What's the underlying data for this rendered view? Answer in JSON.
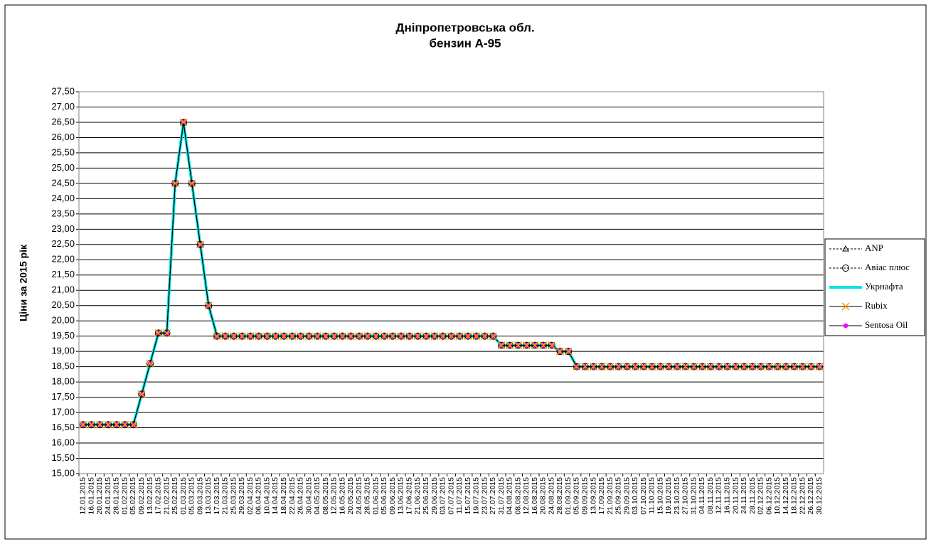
{
  "chart_data": {
    "type": "line",
    "title": "Дніпропетровська обл.",
    "subtitle": "бензин А-95",
    "y_label": "Ціни за 2015 рік",
    "categories": [
      "12.01.2015",
      "16.01.2015",
      "20.01.2015",
      "24.01.2015",
      "28.01.2015",
      "01.02.2015",
      "05.02.2015",
      "09.02.2015",
      "13.02.2015",
      "17.02.2015",
      "21.02.2015",
      "25.02.2015",
      "01.03.2015",
      "05.03.2015",
      "09.03.2015",
      "13.03.2015",
      "17.03.2015",
      "21.03.2015",
      "25.03.2015",
      "29.03.2015",
      "02.04.2015",
      "06.04.2015",
      "10.04.2015",
      "14.04.2015",
      "18.04.2015",
      "22.04.2015",
      "26.04.2015",
      "30.04.2015",
      "04.05.2015",
      "08.05.2015",
      "12.05.2015",
      "16.05.2015",
      "20.05.2015",
      "24.05.2015",
      "28.05.2015",
      "01.06.2015",
      "05.06.2015",
      "09.06.2015",
      "13.06.2015",
      "17.06.2015",
      "21.06.2015",
      "25.06.2015",
      "29.06.2015",
      "03.07.2015",
      "07.07.2015",
      "11.07.2015",
      "15.07.2015",
      "19.07.2015",
      "23.07.2015",
      "27.07.2015",
      "31.07.2015",
      "04.08.2015",
      "08.08.2015",
      "12.08.2015",
      "16.08.2015",
      "20.08.2015",
      "24.08.2015",
      "28.08.2015",
      "01.09.2015",
      "05.09.2015",
      "09.09.2015",
      "13.09.2015",
      "17.09.2015",
      "21.09.2015",
      "25.09.2015",
      "29.09.2015",
      "03.10.2015",
      "07.10.2015",
      "11.10.2015",
      "15.10.2015",
      "19.10.2015",
      "23.10.2015",
      "27.10.2015",
      "31.10.2015",
      "04.11.2015",
      "08.11.2015",
      "12.11.2015",
      "16.11.2015",
      "20.11.2015",
      "24.11.2015",
      "28.11.2015",
      "02.12.2015",
      "06.12.2015",
      "10.12.2015",
      "14.12.2015",
      "18.12.2015",
      "22.12.2015",
      "26.12.2015",
      "30.12.2015"
    ],
    "series": [
      {
        "name": "ANP",
        "color": "#000000",
        "dash": true,
        "width": 1,
        "marker": "triangle",
        "marker_color": "#000000",
        "values": [
          16.6,
          16.6,
          16.6,
          16.6,
          16.6,
          16.6,
          16.6,
          17.6,
          18.6,
          19.6,
          19.6,
          24.5,
          26.5,
          24.5,
          22.5,
          20.5,
          19.5,
          19.5,
          19.5,
          19.5,
          19.5,
          19.5,
          19.5,
          19.5,
          19.5,
          19.5,
          19.5,
          19.5,
          19.5,
          19.5,
          19.5,
          19.5,
          19.5,
          19.5,
          19.5,
          19.5,
          19.5,
          19.5,
          19.5,
          19.5,
          19.5,
          19.5,
          19.5,
          19.5,
          19.5,
          19.5,
          19.5,
          19.5,
          19.5,
          19.5,
          19.2,
          19.2,
          19.2,
          19.2,
          19.2,
          19.2,
          19.2,
          19.0,
          19.0,
          18.5,
          18.5,
          18.5,
          18.5,
          18.5,
          18.5,
          18.5,
          18.5,
          18.5,
          18.5,
          18.5,
          18.5,
          18.5,
          18.5,
          18.5,
          18.5,
          18.5,
          18.5,
          18.5,
          18.5,
          18.5,
          18.5,
          18.5,
          18.5,
          18.5,
          18.5,
          18.5,
          18.5,
          18.5,
          18.5
        ]
      },
      {
        "name": "Авіас плюс",
        "color": "#000000",
        "dash": true,
        "width": 1,
        "marker": "circle",
        "marker_color": "#000000",
        "values": [
          16.6,
          16.6,
          16.6,
          16.6,
          16.6,
          16.6,
          16.6,
          17.6,
          18.6,
          19.6,
          19.6,
          24.5,
          26.5,
          24.5,
          22.5,
          20.5,
          19.5,
          19.5,
          19.5,
          19.5,
          19.5,
          19.5,
          19.5,
          19.5,
          19.5,
          19.5,
          19.5,
          19.5,
          19.5,
          19.5,
          19.5,
          19.5,
          19.5,
          19.5,
          19.5,
          19.5,
          19.5,
          19.5,
          19.5,
          19.5,
          19.5,
          19.5,
          19.5,
          19.5,
          19.5,
          19.5,
          19.5,
          19.5,
          19.5,
          19.5,
          19.2,
          19.2,
          19.2,
          19.2,
          19.2,
          19.2,
          19.2,
          19.0,
          19.0,
          18.5,
          18.5,
          18.5,
          18.5,
          18.5,
          18.5,
          18.5,
          18.5,
          18.5,
          18.5,
          18.5,
          18.5,
          18.5,
          18.5,
          18.5,
          18.5,
          18.5,
          18.5,
          18.5,
          18.5,
          18.5,
          18.5,
          18.5,
          18.5,
          18.5,
          18.5,
          18.5,
          18.5,
          18.5,
          18.5
        ]
      },
      {
        "name": "Укрнафта",
        "color": "#00e5e5",
        "dash": false,
        "width": 4,
        "marker": "none",
        "marker_color": "#00e5e5",
        "values": [
          16.6,
          16.6,
          16.6,
          16.6,
          16.6,
          16.6,
          16.6,
          17.6,
          18.6,
          19.6,
          19.6,
          24.5,
          26.5,
          24.5,
          22.5,
          20.5,
          19.5,
          19.5,
          19.5,
          19.5,
          19.5,
          19.5,
          19.5,
          19.5,
          19.5,
          19.5,
          19.5,
          19.5,
          19.5,
          19.5,
          19.5,
          19.5,
          19.5,
          19.5,
          19.5,
          19.5,
          19.5,
          19.5,
          19.5,
          19.5,
          19.5,
          19.5,
          19.5,
          19.5,
          19.5,
          19.5,
          19.5,
          19.5,
          19.5,
          19.5,
          19.2,
          19.2,
          19.2,
          19.2,
          19.2,
          19.2,
          19.2,
          19.0,
          19.0,
          18.5,
          18.5,
          18.5,
          18.5,
          18.5,
          18.5,
          18.5,
          18.5,
          18.5,
          18.5,
          18.5,
          18.5,
          18.5,
          18.5,
          18.5,
          18.5,
          18.5,
          18.5,
          18.5,
          18.5,
          18.5,
          18.5,
          18.5,
          18.5,
          18.5,
          18.5,
          18.5,
          18.5,
          18.5,
          18.5
        ]
      },
      {
        "name": "Rubix",
        "color": "#000000",
        "dash": false,
        "width": 1,
        "marker": "x",
        "marker_color": "#ff9900",
        "values": [
          16.6,
          16.6,
          16.6,
          16.6,
          16.6,
          16.6,
          16.6,
          17.6,
          18.6,
          19.6,
          19.6,
          24.5,
          26.5,
          24.5,
          22.5,
          20.5,
          19.5,
          19.5,
          19.5,
          19.5,
          19.5,
          19.5,
          19.5,
          19.5,
          19.5,
          19.5,
          19.5,
          19.5,
          19.5,
          19.5,
          19.5,
          19.5,
          19.5,
          19.5,
          19.5,
          19.5,
          19.5,
          19.5,
          19.5,
          19.5,
          19.5,
          19.5,
          19.5,
          19.5,
          19.5,
          19.5,
          19.5,
          19.5,
          19.5,
          19.5,
          19.2,
          19.2,
          19.2,
          19.2,
          19.2,
          19.2,
          19.2,
          19.0,
          19.0,
          18.5,
          18.5,
          18.5,
          18.5,
          18.5,
          18.5,
          18.5,
          18.5,
          18.5,
          18.5,
          18.5,
          18.5,
          18.5,
          18.5,
          18.5,
          18.5,
          18.5,
          18.5,
          18.5,
          18.5,
          18.5,
          18.5,
          18.5,
          18.5,
          18.5,
          18.5,
          18.5,
          18.5,
          18.5,
          18.5
        ]
      },
      {
        "name": "Sentosa Oil",
        "color": "#000000",
        "dash": false,
        "width": 1,
        "marker": "dot",
        "marker_color": "#ff00ff",
        "values": [
          16.6,
          16.6,
          16.6,
          16.6,
          16.6,
          16.6,
          16.6,
          17.6,
          18.6,
          19.6,
          19.6,
          24.5,
          26.5,
          24.5,
          22.5,
          20.5,
          19.5,
          19.5,
          19.5,
          19.5,
          19.5,
          19.5,
          19.5,
          19.5,
          19.5,
          19.5,
          19.5,
          19.5,
          19.5,
          19.5,
          19.5,
          19.5,
          19.5,
          19.5,
          19.5,
          19.5,
          19.5,
          19.5,
          19.5,
          19.5,
          19.5,
          19.5,
          19.5,
          19.5,
          19.5,
          19.5,
          19.5,
          19.5,
          19.5,
          19.5,
          19.2,
          19.2,
          19.2,
          19.2,
          19.2,
          19.2,
          19.2,
          19.0,
          19.0,
          18.5,
          18.5,
          18.5,
          18.5,
          18.5,
          18.5,
          18.5,
          18.5,
          18.5,
          18.5,
          18.5,
          18.5,
          18.5,
          18.5,
          18.5,
          18.5,
          18.5,
          18.5,
          18.5,
          18.5,
          18.5,
          18.5,
          18.5,
          18.5,
          18.5,
          18.5,
          18.5,
          18.5,
          18.5,
          18.5
        ]
      }
    ],
    "ylim": [
      15,
      27.5
    ],
    "yticks": [
      {
        "value": 15,
        "label": "15,00"
      },
      {
        "value": 15.5,
        "label": "15,50"
      },
      {
        "value": 16,
        "label": "16,00"
      },
      {
        "value": 16.5,
        "label": "16,50"
      },
      {
        "value": 17,
        "label": "17,00"
      },
      {
        "value": 17.5,
        "label": "17,50"
      },
      {
        "value": 18,
        "label": "18,00"
      },
      {
        "value": 18.5,
        "label": "18,50"
      },
      {
        "value": 19,
        "label": "19,00"
      },
      {
        "value": 19.5,
        "label": "19,50"
      },
      {
        "value": 20,
        "label": "20,00"
      },
      {
        "value": 20.5,
        "label": "20,50"
      },
      {
        "value": 21,
        "label": "21,00"
      },
      {
        "value": 21.5,
        "label": "21,50"
      },
      {
        "value": 22,
        "label": "22,00"
      },
      {
        "value": 22.5,
        "label": "22,50"
      },
      {
        "value": 23,
        "label": "23,00"
      },
      {
        "value": 23.5,
        "label": "23,50"
      },
      {
        "value": 24,
        "label": "24,00"
      },
      {
        "value": 24.5,
        "label": "24,50"
      },
      {
        "value": 25,
        "label": "25,00"
      },
      {
        "value": 25.5,
        "label": "25,50"
      },
      {
        "value": 26,
        "label": "26,00"
      },
      {
        "value": 26.5,
        "label": "26,50"
      },
      {
        "value": 27,
        "label": "27,00"
      },
      {
        "value": 27.5,
        "label": "27,50"
      }
    ],
    "grid": true,
    "legend": "right"
  }
}
